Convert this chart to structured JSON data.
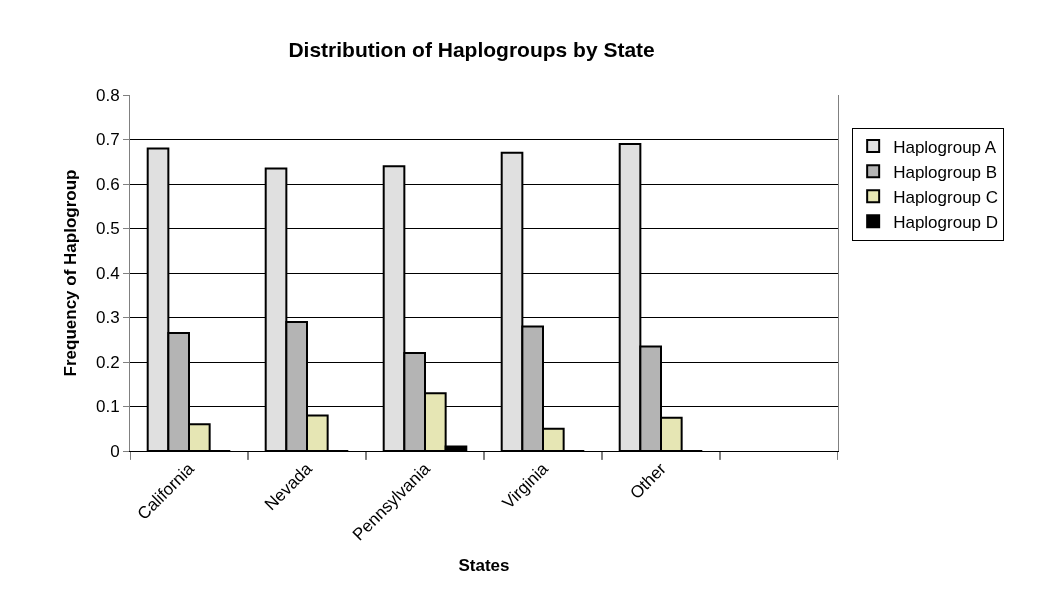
{
  "chart_data": {
    "type": "bar",
    "title": "Distribution of Haplogroups by State",
    "xlabel": "States",
    "ylabel": "Frequency of Haplogroup",
    "categories": [
      "California",
      "Nevada",
      "Pennsylvania",
      "Virginia",
      "Other",
      null
    ],
    "series": [
      {
        "name": "Haplogroup A",
        "color": "#e0e0e0",
        "values": [
          0.68,
          0.635,
          0.64,
          0.67,
          0.69,
          null
        ]
      },
      {
        "name": "Haplogroup B",
        "color": "#b4b4b4",
        "values": [
          0.265,
          0.29,
          0.22,
          0.28,
          0.235,
          null
        ]
      },
      {
        "name": "Haplogroup C",
        "color": "#e6e6b4",
        "values": [
          0.06,
          0.08,
          0.13,
          0.05,
          0.075,
          null
        ]
      },
      {
        "name": "Haplogroup D",
        "color": "#000000",
        "values": [
          0,
          0,
          0.01,
          0,
          0,
          null
        ]
      }
    ],
    "ylim": [
      0,
      0.8
    ],
    "yticks": [
      0,
      0.1,
      0.2,
      0.3,
      0.4,
      0.5,
      0.6,
      0.7,
      0.8
    ],
    "grid": "y",
    "legend": "right"
  }
}
